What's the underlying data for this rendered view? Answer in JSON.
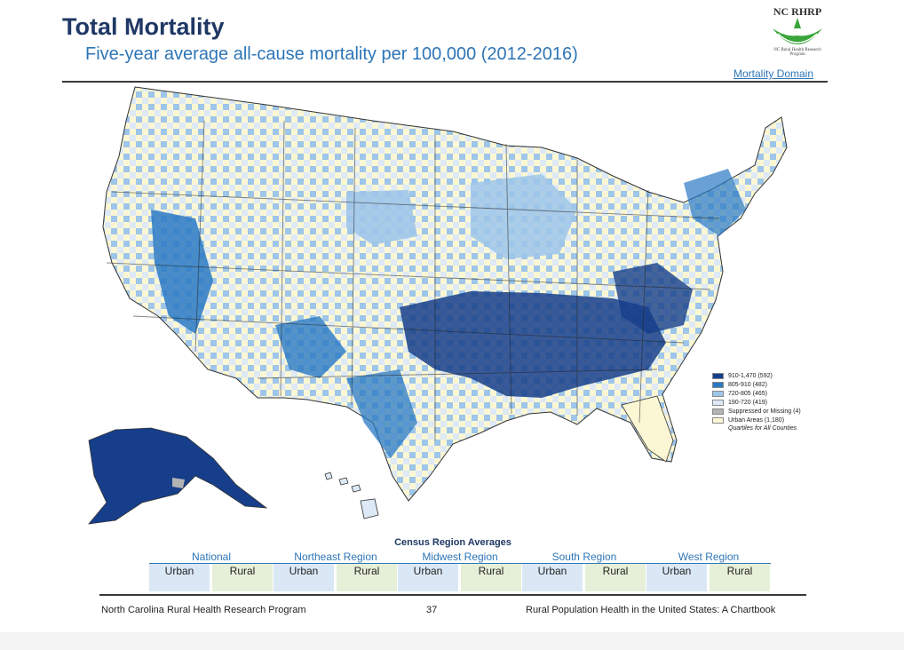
{
  "title": "Total Mortality",
  "subtitle": "Five-year average all-cause mortality per 100,000 (2012-2016)",
  "logo": {
    "text": "NC RHRP",
    "subtext": "NC Rural Health Research Program",
    "color": "#3aa53a"
  },
  "domain_label": "Mortality Domain",
  "legend": {
    "items": [
      {
        "label": "910-1,470 (592)",
        "color": "#163e8a"
      },
      {
        "label": "805-910 (482)",
        "color": "#2a79c4"
      },
      {
        "label": "720-805 (465)",
        "color": "#9ec5ea"
      },
      {
        "label": "190-720 (419)",
        "color": "#dde9f6"
      },
      {
        "label": "Suppressed or Missing (4)",
        "color": "#b3b3b3"
      },
      {
        "label": "Urban Areas (1,180)",
        "color": "#fbf7d4"
      }
    ],
    "note": "Quartiles for All Counties"
  },
  "census": {
    "title": "Census Region Averages",
    "regions": [
      {
        "name": "National",
        "urban": "Urban",
        "rural": "Rural"
      },
      {
        "name": "Northeast Region",
        "urban": "Urban",
        "rural": "Rural"
      },
      {
        "name": "Midwest Region",
        "urban": "Urban",
        "rural": "Rural"
      },
      {
        "name": "South Region",
        "urban": "Urban",
        "rural": "Rural"
      },
      {
        "name": "West Region",
        "urban": "Urban",
        "rural": "Rural"
      }
    ]
  },
  "footer": {
    "left": "North Carolina Rural Health Research Program",
    "page": "37",
    "right": "Rural Population Health in the United States: A Chartbook"
  },
  "colors": {
    "title": "#1f3864",
    "subtitle": "#2e75b6",
    "border": "#333333"
  }
}
